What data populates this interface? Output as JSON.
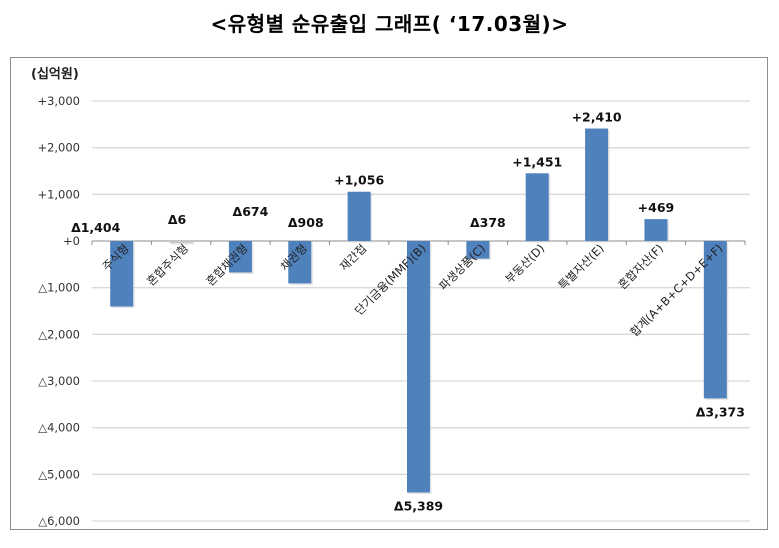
{
  "title": "<유형별 순유출입 그래프( ‘17.03월)>",
  "unit_label": "(십억원)",
  "colors": {
    "bar": "#4f81bd",
    "grid": "#d9d9d9",
    "frame": "#8c8c8c"
  },
  "chart_data": {
    "type": "bar",
    "title": "<유형별 순유출입 그래프( ‘17.03월)>",
    "xlabel": "",
    "ylabel": "(십억원)",
    "ylim": [
      -6000,
      3000
    ],
    "yticks": [
      3000,
      2000,
      1000,
      0,
      -1000,
      -2000,
      -3000,
      -4000,
      -5000,
      -6000
    ],
    "ytick_labels": [
      "+3,000",
      "+2,000",
      "+1,000",
      "+0",
      "△1,000",
      "△2,000",
      "△3,000",
      "△4,000",
      "△5,000",
      "△6,000"
    ],
    "grid": true,
    "legend": null,
    "categories": [
      "주식형",
      "혼합주식형",
      "혼합채권형",
      "채권형",
      "재간접",
      "단기금융(MMF)(B)",
      "파생상품(C)",
      "부동산(D)",
      "특별자산(E)",
      "혼합자산(F)",
      "합계(A+B+C+D+E+F)"
    ],
    "values": [
      -1404,
      -6,
      -674,
      -908,
      1056,
      -5389,
      -378,
      1451,
      2410,
      469,
      -3373
    ],
    "data_labels": [
      "Δ1,404",
      "Δ6",
      "Δ674",
      "Δ908",
      "+1,056",
      "Δ5,389",
      "Δ378",
      "+1,451",
      "+2,410",
      "+469",
      "Δ3,373"
    ]
  }
}
